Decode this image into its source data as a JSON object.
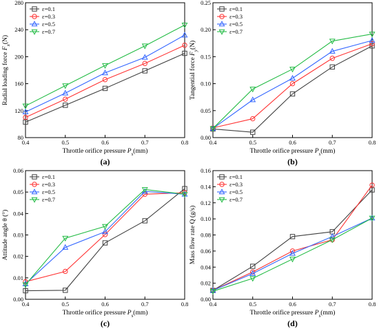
{
  "chart_data": [
    {
      "id": "a",
      "panel_label": "(a)",
      "type": "line",
      "xlabel": "Throttle orifice pressure P_s(mm)",
      "ylabel": "Radial loading force F_x(N)",
      "xlim": [
        0.4,
        0.8
      ],
      "ylim": [
        80,
        280
      ],
      "xticks": [
        "0.4",
        "0.5",
        "0.6",
        "0.7",
        "0.8"
      ],
      "yticks": [
        "80",
        "120",
        "160",
        "200",
        "240",
        "280"
      ],
      "legend_position": "top-left",
      "x": [
        0.4,
        0.5,
        0.6,
        0.7,
        0.8
      ],
      "series": [
        {
          "name": "ε=0.1",
          "color": "#404040",
          "marker": "square",
          "values": [
            103,
            128,
            153,
            179,
            205
          ]
        },
        {
          "name": "ε=0.3",
          "color": "#ff3333",
          "marker": "circle",
          "values": [
            110,
            137,
            166,
            190,
            217
          ]
        },
        {
          "name": "ε=0.5",
          "color": "#3366ff",
          "marker": "triangle-up",
          "values": [
            118,
            146,
            176,
            199,
            232
          ]
        },
        {
          "name": "ε=0.7",
          "color": "#22bb44",
          "marker": "triangle-down",
          "values": [
            127,
            157,
            187,
            216,
            247
          ]
        }
      ]
    },
    {
      "id": "b",
      "panel_label": "(b)",
      "type": "line",
      "xlabel": "Throttle orifice pressure P_s(mm)",
      "ylabel": "Tangential force F_y(N)",
      "xlim": [
        0.4,
        0.8
      ],
      "ylim": [
        0.0,
        0.25
      ],
      "xticks": [
        "0.4",
        "0.5",
        "0.6",
        "0.7",
        "0.8"
      ],
      "yticks": [
        "0.00",
        "0.05",
        "0.10",
        "0.15",
        "0.20",
        "0.25"
      ],
      "legend_position": "top-left",
      "x": [
        0.4,
        0.5,
        0.6,
        0.7,
        0.8
      ],
      "series": [
        {
          "name": "ε=0.1",
          "color": "#404040",
          "marker": "square",
          "values": [
            0.016,
            0.01,
            0.081,
            0.131,
            0.17
          ]
        },
        {
          "name": "ε=0.3",
          "color": "#ff3333",
          "marker": "circle",
          "values": [
            0.018,
            0.035,
            0.1,
            0.147,
            0.174
          ]
        },
        {
          "name": "ε=0.5",
          "color": "#3366ff",
          "marker": "triangle-up",
          "values": [
            0.017,
            0.07,
            0.11,
            0.16,
            0.18
          ]
        },
        {
          "name": "ε=0.7",
          "color": "#22bb44",
          "marker": "triangle-down",
          "values": [
            0.017,
            0.09,
            0.127,
            0.179,
            0.192
          ]
        }
      ]
    },
    {
      "id": "c",
      "panel_label": "(c)",
      "type": "line",
      "xlabel": "Throttle orifice pressure P_s(mm)",
      "ylabel": "Attitude angle θ (°)",
      "xlim": [
        0.4,
        0.8
      ],
      "ylim": [
        0.0,
        0.06
      ],
      "xticks": [
        "0.4",
        "0.5",
        "0.6",
        "0.7",
        "0.8"
      ],
      "yticks": [
        "0.00",
        "0.01",
        "0.02",
        "0.03",
        "0.04",
        "0.05",
        "0.06"
      ],
      "legend_position": "top-left",
      "x": [
        0.4,
        0.5,
        0.6,
        0.7,
        0.8
      ],
      "series": [
        {
          "name": "ε=0.1",
          "color": "#404040",
          "marker": "square",
          "values": [
            0.004,
            0.0042,
            0.0263,
            0.0366,
            0.0516
          ]
        },
        {
          "name": "ε=0.3",
          "color": "#ff3333",
          "marker": "circle",
          "values": [
            0.0082,
            0.013,
            0.0302,
            0.049,
            0.0497
          ]
        },
        {
          "name": "ε=0.5",
          "color": "#3366ff",
          "marker": "triangle-up",
          "values": [
            0.0072,
            0.0242,
            0.0315,
            0.0503,
            0.049
          ]
        },
        {
          "name": "ε=0.7",
          "color": "#22bb44",
          "marker": "triangle-down",
          "values": [
            0.0068,
            0.0285,
            0.034,
            0.0512,
            0.049
          ]
        }
      ]
    },
    {
      "id": "d",
      "panel_label": "(d)",
      "type": "line",
      "xlabel": "Throttle orifice pressure P_s(mm)",
      "ylabel": "Mass flow rate Q (g/s)",
      "xlim": [
        0.4,
        0.8
      ],
      "ylim": [
        0.0,
        0.16
      ],
      "xticks": [
        "0.4",
        "0.5",
        "0.6",
        "0.7",
        "0.8"
      ],
      "yticks": [
        "0.00",
        "0.02",
        "0.04",
        "0.06",
        "0.08",
        "0.10",
        "0.12",
        "0.14",
        "0.16"
      ],
      "legend_position": "top-left",
      "x": [
        0.4,
        0.5,
        0.6,
        0.7,
        0.8
      ],
      "series": [
        {
          "name": "ε=0.1",
          "color": "#404040",
          "marker": "square",
          "values": [
            0.011,
            0.041,
            0.078,
            0.084,
            0.136
          ]
        },
        {
          "name": "ε=0.3",
          "color": "#ff3333",
          "marker": "circle",
          "values": [
            0.011,
            0.034,
            0.06,
            0.074,
            0.142
          ]
        },
        {
          "name": "ε=0.5",
          "color": "#3366ff",
          "marker": "triangle-up",
          "values": [
            0.011,
            0.032,
            0.057,
            0.078,
            0.101
          ]
        },
        {
          "name": "ε=0.7",
          "color": "#22bb44",
          "marker": "triangle-down",
          "values": [
            0.01,
            0.026,
            0.05,
            0.074,
            0.101
          ]
        }
      ]
    }
  ]
}
